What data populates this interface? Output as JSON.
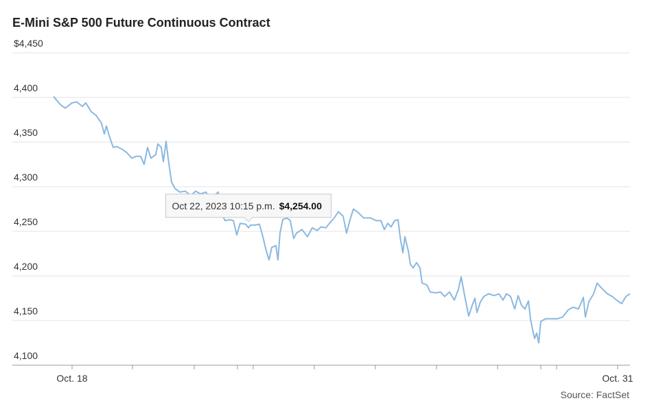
{
  "chart_data": {
    "type": "line",
    "title": "E-Mini S&P 500 Future Continuous Contract",
    "source": "Source: FactSet",
    "x": [
      0,
      10,
      17,
      27,
      34,
      42,
      47,
      55,
      62,
      70,
      74,
      77,
      82,
      87,
      92,
      100,
      107,
      114,
      120,
      127,
      132,
      137,
      142,
      149,
      152,
      157,
      160,
      164,
      167,
      172,
      177,
      184,
      192,
      200,
      207,
      214,
      222,
      229,
      234,
      240,
      244,
      250,
      257,
      262,
      267,
      272,
      280,
      284,
      287,
      294,
      300,
      305,
      310,
      314,
      318,
      324,
      327,
      330,
      334,
      340,
      345,
      350,
      354,
      362,
      370,
      377,
      384,
      390,
      397,
      402,
      409,
      415,
      422,
      427,
      432,
      437,
      444,
      452,
      462,
      470,
      477,
      482,
      487,
      492,
      497,
      502,
      505,
      509,
      512,
      517,
      520,
      524,
      529,
      534,
      537,
      544,
      549,
      557,
      564,
      570,
      577,
      584,
      590,
      594,
      599,
      605,
      610,
      614,
      617,
      622,
      627,
      634,
      642,
      649,
      655,
      660,
      666,
      672,
      677,
      682,
      687,
      692,
      695,
      698,
      701,
      704,
      707,
      710,
      717,
      727,
      734,
      742,
      750,
      757,
      765,
      772,
      775,
      780,
      787,
      792,
      799,
      807,
      814,
      822,
      828,
      834,
      840
    ],
    "series": [
      {
        "name": "E-Mini S&P 500",
        "color": "#8ab8e0",
        "values": [
          4401,
          4392,
          4388,
          4394,
          4395,
          4390,
          4394,
          4384,
          4380,
          4371,
          4359,
          4368,
          4355,
          4344,
          4345,
          4342,
          4338,
          4332,
          4334,
          4334,
          4325,
          4344,
          4332,
          4336,
          4348,
          4344,
          4328,
          4351,
          4332,
          4305,
          4298,
          4294,
          4295,
          4290,
          4295,
          4292,
          4294,
          4286,
          4290,
          4294,
          4271,
          4262,
          4263,
          4262,
          4246,
          4259,
          4258,
          4254,
          4257,
          4257,
          4258,
          4244,
          4228,
          4218,
          4232,
          4234,
          4218,
          4248,
          4263,
          4265,
          4262,
          4242,
          4248,
          4252,
          4244,
          4254,
          4251,
          4255,
          4254,
          4259,
          4265,
          4272,
          4267,
          4248,
          4263,
          4275,
          4271,
          4265,
          4265,
          4262,
          4262,
          4252,
          4259,
          4255,
          4262,
          4263,
          4244,
          4226,
          4244,
          4228,
          4213,
          4209,
          4215,
          4209,
          4192,
          4190,
          4182,
          4181,
          4182,
          4177,
          4182,
          4173,
          4185,
          4199,
          4178,
          4155,
          4167,
          4175,
          4159,
          4171,
          4177,
          4180,
          4178,
          4180,
          4173,
          4180,
          4177,
          4163,
          4178,
          4167,
          4163,
          4172,
          4152,
          4140,
          4130,
          4136,
          4125,
          4149,
          4152,
          4152,
          4152,
          4154,
          4162,
          4165,
          4163,
          4176,
          4154,
          4171,
          4180,
          4192,
          4186,
          4180,
          4177,
          4172,
          4169,
          4177,
          4180
        ]
      }
    ],
    "xlim": [
      0,
      840
    ],
    "xticks": [
      {
        "value": 27,
        "label": "Oct. 18"
      },
      {
        "value": 822,
        "label": "Oct. 31"
      }
    ],
    "xminorticks": [
      115,
      205,
      268,
      291,
      380,
      469,
      558,
      647,
      710,
      733
    ],
    "ylim": [
      4100,
      4450
    ],
    "yticks": [
      {
        "value": 4100,
        "label": "4,100"
      },
      {
        "value": 4150,
        "label": "4,150"
      },
      {
        "value": 4200,
        "label": "4,200"
      },
      {
        "value": 4250,
        "label": "4,250"
      },
      {
        "value": 4300,
        "label": "4,300"
      },
      {
        "value": 4350,
        "label": "4,350"
      },
      {
        "value": 4400,
        "label": "4,400"
      },
      {
        "value": 4450,
        "label": "$4,450"
      }
    ],
    "grid": true,
    "tooltip": {
      "x": 284,
      "value": 4254,
      "label": "Oct 22, 2023 10:15 p.m.",
      "value_label": "$4,254.00"
    }
  }
}
